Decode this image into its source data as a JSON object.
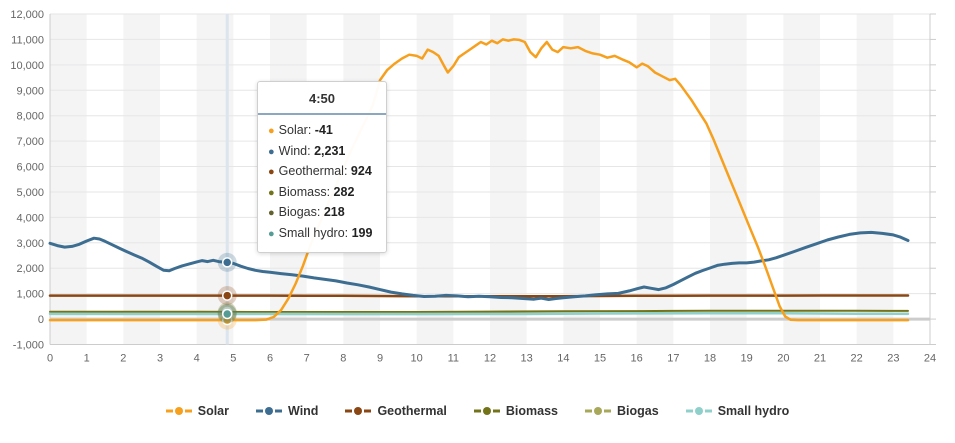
{
  "chart_data": {
    "type": "line",
    "title": "",
    "x_axis": {
      "min": 0,
      "max": 24,
      "ticks": [
        "0",
        "1",
        "2",
        "3",
        "4",
        "5",
        "6",
        "7",
        "8",
        "9",
        "10",
        "11",
        "12",
        "13",
        "14",
        "15",
        "16",
        "17",
        "18",
        "19",
        "20",
        "21",
        "22",
        "23",
        "24"
      ]
    },
    "y_axis": {
      "min": -1000,
      "max": 12000,
      "tick_step": 1000,
      "tick_labels": [
        "-1,000",
        "0",
        "1,000",
        "2,000",
        "3,000",
        "4,000",
        "5,000",
        "6,000",
        "7,000",
        "8,000",
        "9,000",
        "10,000",
        "11,000",
        "12,000"
      ]
    },
    "grid": {
      "gridline_color": "#e6e6e6",
      "zero_line_color": "#cccccc",
      "band_color": "#f4f4f5",
      "border_color": "#cccccc"
    },
    "hover": {
      "x_value": 4.8333,
      "crosshair_color": "#dce4ee"
    },
    "tooltip": {
      "title": "4:50",
      "rows": [
        {
          "label": "Solar: ",
          "value": "-41"
        },
        {
          "label": "Wind: ",
          "value": "2,231"
        },
        {
          "label": "Geothermal: ",
          "value": "924"
        },
        {
          "label": "Biomass: ",
          "value": "282"
        },
        {
          "label": "Biogas: ",
          "value": "218"
        },
        {
          "label": "Small hydro: ",
          "value": "199"
        }
      ]
    },
    "legend": {
      "items": [
        "Solar",
        "Wind",
        "Geothermal",
        "Biomass",
        "Biogas",
        "Small hydro"
      ]
    },
    "series": [
      {
        "name": "Solar",
        "color": "#F6A01E",
        "dot_color": "#F6A01E",
        "width": 2.5,
        "hover_value": -41,
        "points": [
          [
            0,
            -41
          ],
          [
            0.5,
            -41
          ],
          [
            1,
            -41
          ],
          [
            1.5,
            -41
          ],
          [
            2,
            -41
          ],
          [
            2.5,
            -41
          ],
          [
            3,
            -41
          ],
          [
            3.5,
            -41
          ],
          [
            4,
            -41
          ],
          [
            4.5,
            -41
          ],
          [
            4.83,
            -41
          ],
          [
            5.2,
            -41
          ],
          [
            5.6,
            -41
          ],
          [
            5.9,
            -20
          ],
          [
            6.1,
            80
          ],
          [
            6.3,
            350
          ],
          [
            6.5,
            800
          ],
          [
            6.7,
            1400
          ],
          [
            6.9,
            2100
          ],
          [
            7.1,
            2900
          ],
          [
            7.3,
            3600
          ],
          [
            7.6,
            4600
          ],
          [
            7.9,
            5600
          ],
          [
            8.2,
            6600
          ],
          [
            8.5,
            7500
          ],
          [
            8.8,
            8400
          ],
          [
            9.0,
            9400
          ],
          [
            9.2,
            9800
          ],
          [
            9.4,
            10050
          ],
          [
            9.6,
            10250
          ],
          [
            9.8,
            10400
          ],
          [
            10.0,
            10350
          ],
          [
            10.15,
            10250
          ],
          [
            10.3,
            10600
          ],
          [
            10.45,
            10500
          ],
          [
            10.6,
            10350
          ],
          [
            10.75,
            9950
          ],
          [
            10.85,
            9700
          ],
          [
            11.0,
            9950
          ],
          [
            11.15,
            10300
          ],
          [
            11.3,
            10450
          ],
          [
            11.45,
            10600
          ],
          [
            11.6,
            10750
          ],
          [
            11.75,
            10900
          ],
          [
            11.9,
            10800
          ],
          [
            12.05,
            10950
          ],
          [
            12.2,
            10850
          ],
          [
            12.35,
            11000
          ],
          [
            12.5,
            10950
          ],
          [
            12.65,
            11000
          ],
          [
            12.8,
            10980
          ],
          [
            12.95,
            10900
          ],
          [
            13.1,
            10500
          ],
          [
            13.25,
            10300
          ],
          [
            13.4,
            10650
          ],
          [
            13.55,
            10900
          ],
          [
            13.7,
            10600
          ],
          [
            13.85,
            10500
          ],
          [
            14.0,
            10700
          ],
          [
            14.2,
            10650
          ],
          [
            14.4,
            10700
          ],
          [
            14.6,
            10550
          ],
          [
            14.8,
            10450
          ],
          [
            15.0,
            10400
          ],
          [
            15.2,
            10280
          ],
          [
            15.4,
            10350
          ],
          [
            15.6,
            10220
          ],
          [
            15.8,
            10100
          ],
          [
            16.0,
            9900
          ],
          [
            16.15,
            10050
          ],
          [
            16.3,
            9950
          ],
          [
            16.5,
            9700
          ],
          [
            16.7,
            9550
          ],
          [
            16.9,
            9400
          ],
          [
            17.05,
            9450
          ],
          [
            17.2,
            9200
          ],
          [
            17.35,
            8900
          ],
          [
            17.5,
            8600
          ],
          [
            17.7,
            8150
          ],
          [
            17.9,
            7700
          ],
          [
            18.1,
            7050
          ],
          [
            18.3,
            6350
          ],
          [
            18.5,
            5650
          ],
          [
            18.7,
            4950
          ],
          [
            18.9,
            4250
          ],
          [
            19.1,
            3550
          ],
          [
            19.3,
            2850
          ],
          [
            19.5,
            2100
          ],
          [
            19.7,
            1300
          ],
          [
            19.9,
            500
          ],
          [
            20.05,
            100
          ],
          [
            20.2,
            -30
          ],
          [
            20.4,
            -41
          ],
          [
            20.8,
            -41
          ],
          [
            21.2,
            -41
          ],
          [
            21.6,
            -41
          ],
          [
            22,
            -41
          ],
          [
            22.4,
            -41
          ],
          [
            22.8,
            -41
          ],
          [
            23.1,
            -41
          ],
          [
            23.4,
            -41
          ]
        ]
      },
      {
        "name": "Wind",
        "color": "#3D6E91",
        "dot_color": "#3D6E91",
        "width": 3,
        "hover_value": 2231,
        "points": [
          [
            0,
            2980
          ],
          [
            0.2,
            2890
          ],
          [
            0.4,
            2830
          ],
          [
            0.6,
            2860
          ],
          [
            0.8,
            2940
          ],
          [
            1.0,
            3070
          ],
          [
            1.2,
            3180
          ],
          [
            1.35,
            3150
          ],
          [
            1.5,
            3060
          ],
          [
            1.7,
            2920
          ],
          [
            1.9,
            2780
          ],
          [
            2.1,
            2650
          ],
          [
            2.3,
            2520
          ],
          [
            2.5,
            2400
          ],
          [
            2.7,
            2250
          ],
          [
            2.9,
            2080
          ],
          [
            3.1,
            1920
          ],
          [
            3.25,
            1900
          ],
          [
            3.4,
            1990
          ],
          [
            3.6,
            2090
          ],
          [
            3.8,
            2170
          ],
          [
            4.0,
            2250
          ],
          [
            4.15,
            2300
          ],
          [
            4.3,
            2260
          ],
          [
            4.45,
            2310
          ],
          [
            4.6,
            2260
          ],
          [
            4.83,
            2231
          ],
          [
            5.0,
            2190
          ],
          [
            5.2,
            2080
          ],
          [
            5.4,
            1990
          ],
          [
            5.6,
            1920
          ],
          [
            5.8,
            1870
          ],
          [
            6.0,
            1840
          ],
          [
            6.3,
            1790
          ],
          [
            6.6,
            1740
          ],
          [
            6.9,
            1690
          ],
          [
            7.2,
            1620
          ],
          [
            7.5,
            1560
          ],
          [
            7.8,
            1500
          ],
          [
            8.1,
            1420
          ],
          [
            8.4,
            1350
          ],
          [
            8.7,
            1260
          ],
          [
            9.0,
            1160
          ],
          [
            9.3,
            1060
          ],
          [
            9.6,
            990
          ],
          [
            9.9,
            930
          ],
          [
            10.2,
            890
          ],
          [
            10.5,
            900
          ],
          [
            10.8,
            930
          ],
          [
            11.1,
            910
          ],
          [
            11.4,
            880
          ],
          [
            11.7,
            900
          ],
          [
            12.0,
            880
          ],
          [
            12.3,
            850
          ],
          [
            12.6,
            840
          ],
          [
            12.9,
            810
          ],
          [
            13.2,
            780
          ],
          [
            13.4,
            820
          ],
          [
            13.6,
            770
          ],
          [
            13.8,
            810
          ],
          [
            14.0,
            840
          ],
          [
            14.3,
            880
          ],
          [
            14.6,
            910
          ],
          [
            14.9,
            960
          ],
          [
            15.2,
            990
          ],
          [
            15.5,
            1010
          ],
          [
            15.8,
            1110
          ],
          [
            16.0,
            1190
          ],
          [
            16.2,
            1260
          ],
          [
            16.4,
            1210
          ],
          [
            16.6,
            1160
          ],
          [
            16.8,
            1230
          ],
          [
            17.0,
            1360
          ],
          [
            17.2,
            1510
          ],
          [
            17.4,
            1660
          ],
          [
            17.6,
            1800
          ],
          [
            17.8,
            1910
          ],
          [
            18.0,
            2010
          ],
          [
            18.2,
            2110
          ],
          [
            18.4,
            2160
          ],
          [
            18.6,
            2190
          ],
          [
            18.8,
            2210
          ],
          [
            19.0,
            2210
          ],
          [
            19.2,
            2240
          ],
          [
            19.4,
            2290
          ],
          [
            19.6,
            2330
          ],
          [
            19.8,
            2410
          ],
          [
            20.0,
            2510
          ],
          [
            20.3,
            2660
          ],
          [
            20.6,
            2810
          ],
          [
            20.9,
            2960
          ],
          [
            21.2,
            3110
          ],
          [
            21.5,
            3230
          ],
          [
            21.8,
            3330
          ],
          [
            22.1,
            3390
          ],
          [
            22.4,
            3410
          ],
          [
            22.7,
            3370
          ],
          [
            23.0,
            3310
          ],
          [
            23.2,
            3220
          ],
          [
            23.4,
            3090
          ]
        ]
      },
      {
        "name": "Geothermal",
        "color": "#8A4613",
        "dot_color": "#8A4613",
        "width": 2.5,
        "hover_value": 924,
        "points": [
          [
            0,
            924
          ],
          [
            1,
            924
          ],
          [
            2,
            924
          ],
          [
            3,
            924
          ],
          [
            4,
            924
          ],
          [
            4.83,
            924
          ],
          [
            6,
            922
          ],
          [
            7,
            920
          ],
          [
            8,
            916
          ],
          [
            9,
            908
          ],
          [
            10,
            900
          ],
          [
            11,
            896
          ],
          [
            12,
            894
          ],
          [
            13,
            896
          ],
          [
            14,
            900
          ],
          [
            15,
            906
          ],
          [
            16,
            914
          ],
          [
            17,
            920
          ],
          [
            18,
            923
          ],
          [
            19,
            924
          ],
          [
            20,
            925
          ],
          [
            21,
            926
          ],
          [
            22,
            926
          ],
          [
            23,
            926
          ],
          [
            23.4,
            926
          ]
        ]
      },
      {
        "name": "Biomass",
        "color": "#73731A",
        "dot_color": "#73731A",
        "width": 2,
        "hover_value": 282,
        "points": [
          [
            0,
            290
          ],
          [
            2,
            288
          ],
          [
            4,
            285
          ],
          [
            4.83,
            282
          ],
          [
            6,
            280
          ],
          [
            8,
            278
          ],
          [
            10,
            280
          ],
          [
            12,
            295
          ],
          [
            14,
            305
          ],
          [
            16,
            315
          ],
          [
            17,
            320
          ],
          [
            18,
            325
          ],
          [
            19,
            328
          ],
          [
            20,
            328
          ],
          [
            21,
            326
          ],
          [
            22,
            324
          ],
          [
            23,
            322
          ],
          [
            23.4,
            320
          ]
        ]
      },
      {
        "name": "Biogas",
        "color": "#A8A85A",
        "dot_color": "#62622E",
        "width": 2,
        "hover_value": 218,
        "points": [
          [
            0,
            220
          ],
          [
            2,
            219
          ],
          [
            4,
            218
          ],
          [
            4.83,
            218
          ],
          [
            6,
            217
          ],
          [
            8,
            216
          ],
          [
            10,
            215
          ],
          [
            12,
            215
          ],
          [
            14,
            216
          ],
          [
            16,
            217
          ],
          [
            18,
            218
          ],
          [
            20,
            218
          ],
          [
            22,
            219
          ],
          [
            23.4,
            219
          ]
        ]
      },
      {
        "name": "Small hydro",
        "color": "#8FD1CA",
        "dot_color": "#569B94",
        "width": 2.5,
        "hover_value": 199,
        "points": [
          [
            0,
            202
          ],
          [
            2,
            201
          ],
          [
            4,
            200
          ],
          [
            4.83,
            199
          ],
          [
            6,
            198
          ],
          [
            8,
            197
          ],
          [
            10,
            196
          ],
          [
            12,
            198
          ],
          [
            13,
            200
          ],
          [
            14,
            210
          ],
          [
            15,
            222
          ],
          [
            16,
            228
          ],
          [
            17,
            232
          ],
          [
            18,
            232
          ],
          [
            19,
            230
          ],
          [
            20,
            226
          ],
          [
            21,
            218
          ],
          [
            22,
            212
          ],
          [
            23,
            206
          ],
          [
            23.4,
            202
          ]
        ]
      }
    ]
  }
}
